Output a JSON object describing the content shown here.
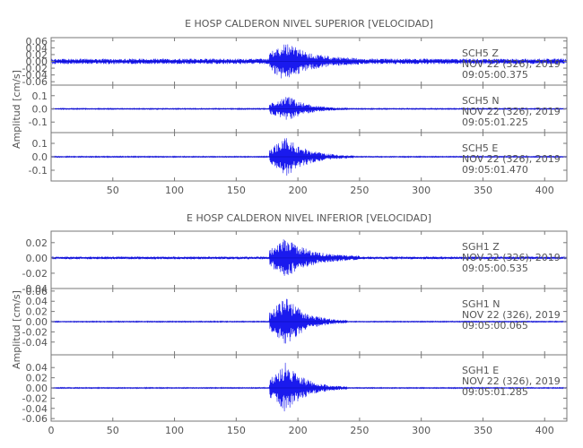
{
  "chart_data": [
    {
      "type": "line",
      "title": "E HOSP CALDERON NIVEL SUPERIOR [VELOCIDAD]",
      "xlabel": "",
      "ylabel": "Amplitud [cm/s]",
      "xlim": [
        0,
        418
      ],
      "x_ticks": [
        "50",
        "100",
        "150",
        "200",
        "250",
        "300",
        "350",
        "400"
      ],
      "grid": false,
      "panels": [
        {
          "station": "SCH5",
          "component": "Z",
          "date": "NOV 22 (326), 2019",
          "time": "09:05:00.375",
          "ylim": [
            -0.07,
            0.07
          ],
          "y_ticks": [
            "0.06",
            "0.04",
            "0.02",
            "0.00",
            "-0.02",
            "-0.04",
            "-0.06"
          ],
          "color": "#1a1aee",
          "noise_amplitude": 0.008,
          "onset_time": 177,
          "peak_amplitude": 0.06,
          "peak_time": 190,
          "decay_end_time": 250
        },
        {
          "station": "SCH5",
          "component": "N",
          "date": "NOV 22 (326), 2019",
          "time": "09:05:01.225",
          "ylim": [
            -0.18,
            0.18
          ],
          "y_ticks": [
            "0.1",
            "0.0",
            "-0.1"
          ],
          "color": "#1a1aee",
          "noise_amplitude": 0.004,
          "onset_time": 177,
          "peak_amplitude": 0.1,
          "peak_time": 192,
          "decay_end_time": 240
        },
        {
          "station": "SCH5",
          "component": "E",
          "date": "NOV 22 (326), 2019",
          "time": "09:05:01.470",
          "ylim": [
            -0.18,
            0.18
          ],
          "y_ticks": [
            "0.1",
            "0.0",
            "-0.1"
          ],
          "color": "#1a1aee",
          "noise_amplitude": 0.004,
          "onset_time": 177,
          "peak_amplitude": 0.15,
          "peak_time": 191,
          "decay_end_time": 245
        }
      ]
    },
    {
      "type": "line",
      "title": "E HOSP CALDERON NIVEL INFERIOR [VELOCIDAD]",
      "xlabel": "",
      "ylabel": "Amplitud [cm/s]",
      "xlim": [
        0,
        418
      ],
      "x_ticks": [
        "0",
        "50",
        "100",
        "150",
        "200",
        "250",
        "300",
        "350",
        "400"
      ],
      "grid": false,
      "panels": [
        {
          "station": "SGH1",
          "component": "Z",
          "date": "NOV 22 (326), 2019",
          "time": "09:05:00.535",
          "ylim": [
            -0.04,
            0.035
          ],
          "y_ticks": [
            "0.02",
            "0.00",
            "-0.02",
            "-0.04"
          ],
          "color": "#1a1aee",
          "noise_amplitude": 0.0018,
          "onset_time": 177,
          "peak_amplitude": 0.027,
          "peak_time": 190,
          "decay_end_time": 250
        },
        {
          "station": "SGH1",
          "component": "N",
          "date": "NOV 22 (326), 2019",
          "time": "09:05:00.065",
          "ylim": [
            -0.065,
            0.065
          ],
          "y_ticks": [
            "0.06",
            "0.04",
            "0.02",
            "0.00",
            "-0.02",
            "-0.04"
          ],
          "color": "#1a1aee",
          "noise_amplitude": 0.001,
          "onset_time": 177,
          "peak_amplitude": 0.05,
          "peak_time": 191,
          "decay_end_time": 240
        },
        {
          "station": "SGH1",
          "component": "E",
          "date": "NOV 22 (326), 2019",
          "time": "09:05:01.285",
          "ylim": [
            -0.065,
            0.065
          ],
          "y_ticks": [
            "0.04",
            "0.02",
            "0.00",
            "-0.02",
            "-0.04",
            "-0.06"
          ],
          "color": "#1a1aee",
          "noise_amplitude": 0.001,
          "onset_time": 177,
          "peak_amplitude": 0.05,
          "peak_time": 190,
          "decay_end_time": 240
        }
      ]
    }
  ]
}
